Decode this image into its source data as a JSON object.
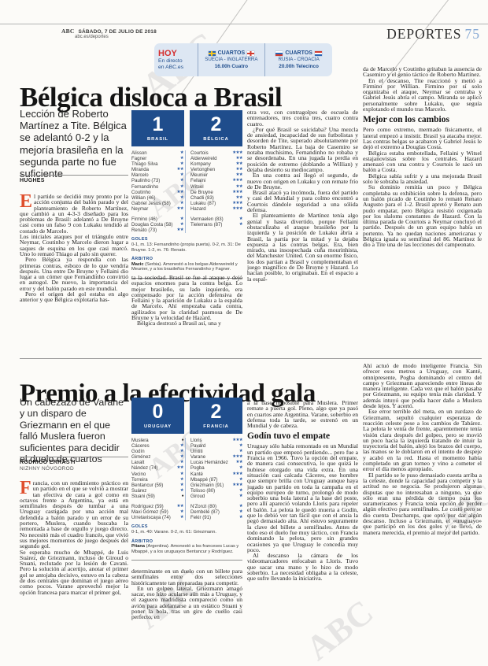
{
  "page": {
    "brand": "ABC",
    "date_line": "SÁBADO, 7 DE JULIO DE 2018",
    "site_line": "abc.es/deportes",
    "section": "DEPORTES",
    "page_number": "75",
    "watermark": "ABC",
    "accent_blue": "#1f4d8c",
    "dropcap_red": "#df4f2d"
  },
  "today_box": {
    "title": "HOY",
    "line1": "En directo",
    "line2": "en ABC.es",
    "matches": [
      {
        "stage": "CUARTOS",
        "teams": "SUECIA - INGLATERRA",
        "time": "16.00h Cuatro"
      },
      {
        "stage": "CUARTOS",
        "teams": "RUSIA - CROACIA",
        "time": "20.00h Telecinco"
      }
    ]
  },
  "article1": {
    "headline": "Bélgica disloca a Brasil",
    "standfirst": "Lección de Roberto Martínez a Tite. Bélgica se adelantó 0-2 y la mejoría brasileña en la segunda parte no fue suficiente",
    "byline": "HUGHES",
    "dropcap": "E",
    "lead_first": "l partido se decidió muy pronto por la acción conjunta del balón parado y del planteamiento de Roberto Martínez, que cambió a un 4-3-3 diseñado para los problemas de Brasil: adelantó a De Bruyne casi como un falso 9 con Lukaku tendido al costado de Marcelo.",
    "col1_rest": [
      "Los iniciales ataques por el triángulo entre Neymar, Coutinho y Marcelo dieron lugar a saques de esquina en los que casi marcó. Uno lo remató Thiago al palo sin querer.",
      "Pero Bélgica ya respondía con las primeras contras, esbozo de lo que vendría después. Una entre De Bruyne y Fellaini dio lugar a un córner que Fernandinho convirtió en autogol. De nuevo, la importancia del error y del balón parado en este mundial.",
      "Pero el origen del gol estaba en algo anterior y que Bélgica explotaría has-"
    ],
    "col2_paragraphs": [
      "ta la sociedad. Brasil se fue al ataque y dejó espacios enormes para la contra belga. Lo mejor brasileño, su lado izquierdo, era compensado por la acción defensiva de Fellaini y la aparición de Lukaku a la espalda de Marcelo. Ahí empezaba cada contra, agilizados por la claridad pasmosa de De Bruyne y la velocidad de Hazard.",
      "Bélgica destrozó a Brasil así, una y"
    ],
    "col3_paragraphs": [
      "otra vez, con contragolpes de escuela de entrenadores, tres contra tres, cuatro contra cuatro.",
      "¿Por qué Brasil se suicidaba? Una mezcla de ansiedad, incapacidad de sus futbolistas y desorden de Tite, superado absolutamente por Roberto Martínez. La baja de Casemiro se notaba muchísimo, Fernandinho no robaba y se desordenaba. En una jugada la perdía en posición de extremo (doblando a Willian) y dejaba desierto su mediocampo.",
      "En una contra así llegó el segundo, de nuevo con origen en Lukaku y con remate frío de De Bruyne.",
      "Brasil atacó ya incómoda, fuera del partido y casi del Mundial y para colmo encontró a Courtois dándole seguridad a una sólida defensa.",
      "El planteamiento de Martínez tenía algo genial y hasta divertido, porque Fellaini obstaculizaba el ataque brasileño por la izquierda y la posición de Lukaku abría a Brasil, la partía por la mitad y la dejaba expuesta a las contras belgas. Era, bien mirado, una insospechada cuña mourinhista, del Manchester United. Con su enorme físico, los dos partían a Brasil y complementaban el juego magnífico de De Bruyne y Hazard. Lo hacían posible, lo originaban. En el espacio a la espal-"
    ],
    "col4_before": [
      "da de Marcelo y Coutinho gritaban la ausencia de Casemiro y el genio táctico de Roberto Martínez.",
      "En el descanso, Tite reaccionó y metió a Firmino por Willian. Firmino por sí solo organizaba el ataque, Neymar se centraba y Gabriel Jesús abría el campo. Miranda se aplicó personalmente sobre Lukaku, que seguía explotando el mundo tras Marcelo."
    ],
    "subhead": "Mejor con los cambios",
    "col4_after": [
      "Pero como extremo, mermado físicamente, el lateral empezó a insistir. Brasil ya atacaba mejor. Las contras belgas se acabaron y Gabriel Jesús le dejó el extremo a Douglas Costa.",
      "Bélgica estaba embotellada, Fellaini y Witsel estajanovistas sobre los centrales. Hazard amenazó con una contra y Courtois le sacó un balón a Costa.",
      "Bélgica sabía sufrir y a una mejorada Brasil solo le sobraba la ansiedad.",
      "Su dominio remitía un poco y Bélgica completaba su exhibición sobre la defensa, pero un balón picado de Coutinho lo remató Renato Augusto para el 1-2. Brasil apretó y Renato aun pudo empatar, pero Bélgica resistió oxigenada por los slaloms constantes de Hazard. Con la última parada de Courtois a Neymar concluyó el partido. Después de un gran equipo había un portento. Ya no quedan naciones americanas y Bélgica iguala su semifinal del 86. Martínez le dio a Tite una de las lecciones del campeonato."
    ],
    "match": {
      "home_score": "1",
      "home_team": "BRASIL",
      "away_score": "2",
      "away_team": "BÉLGICA",
      "home_players": [
        {
          "name": "Alisson",
          "rating": "★"
        },
        {
          "name": "Fagner",
          "rating": "★"
        },
        {
          "name": "Thiago Silva",
          "rating": "★"
        },
        {
          "name": "Miranda",
          "rating": "★★"
        },
        {
          "name": "Marcelo",
          "rating": "★"
        },
        {
          "name": "Paulinho (73)",
          "rating": "★"
        },
        {
          "name": "Fernandinho",
          "rating": "★"
        },
        {
          "name": "Coutinho",
          "rating": "★★"
        },
        {
          "name": "Willian (46)",
          "rating": "★"
        },
        {
          "name": "Gabriel Jesus (58)",
          "rating": "★"
        },
        {
          "name": "Neymar",
          "rating": "★★"
        }
      ],
      "home_subs": [
        {
          "name": "Firmino (46)",
          "rating": "★"
        },
        {
          "name": "Douglas Costa (58)",
          "rating": "★"
        },
        {
          "name": "Renato (73)",
          "rating": "★★"
        }
      ],
      "away_players": [
        {
          "name": "Courtois",
          "rating": "★★★"
        },
        {
          "name": "Alderweireld",
          "rating": "★★"
        },
        {
          "name": "Kompany",
          "rating": "★★"
        },
        {
          "name": "Vertonghen",
          "rating": "★★"
        },
        {
          "name": "Meunier",
          "rating": "★★"
        },
        {
          "name": "Fellaini",
          "rating": "★★★"
        },
        {
          "name": "Witsel",
          "rating": "★★"
        },
        {
          "name": "De Bruyne",
          "rating": "★★★"
        },
        {
          "name": "Chadli (83)",
          "rating": "★★"
        },
        {
          "name": "Lukaku (87)",
          "rating": "★★★"
        },
        {
          "name": "Hazard",
          "rating": "★★★"
        }
      ],
      "away_subs": [
        {
          "name": "Vermaelen (83)",
          "rating": "★"
        },
        {
          "name": "Tielemans (87)",
          "rating": "★"
        }
      ],
      "goles_label": "GOLES",
      "goles": "0-1, m. 13: Fernandinho (propia puerta). 0-2, m. 31: De Bruyne. 1-2, m. 76: Renato.",
      "arbitro_label": "ÁRBITRO",
      "arbitro_name": "Mazic",
      "arbitro_rest": " (Serbia). Amonestó a los belgas Alderweireld y Meunier, y a los brasileños Fernandinho y Fagner."
    }
  },
  "article2": {
    "headline": "Premio a la efectividad gala",
    "standfirst": "Un cabezazo de Varane y un disparo de Griezmann en el que falló Muslera fueron suficientes para decidir el duelo de cuartos",
    "byline": "RODRIGO ERRASTI",
    "byline_location": "NIZHNY NÓVGOROD",
    "dropcap": "F",
    "lead_first": "rancia, con un rendimiento práctico en un partido en el que se volvió a mostrar tan efectiva de cara a gol como en octavos frente a Argentina, ya está en semifinales después de tumbar a una Uruguay castigada por una acción mal defendida a balón parado y un error de su portero, Muslera, cuando buscaba la remontada a base de orgullo y juego directo. No necesitó más el cuadro francés, que vivió sus mejores momentos de juego después del segundo gol.",
    "col1_rest": [
      "Se esperaba mucho de Mbappé, de Luis Suárez, de Griezmann, incluso de Giroud o Stuani, reclutado por la lesión de Cavani. Pero la solución al acertijo, anotar el primer gol se antojaba decisivo, estuvo en la cabeza de dos centrales que dominan el juego aéreo como pocos. Varane aprovechó mejor la opción francesa para marcar el primer gol,"
    ],
    "col2_paragraphs": [
      "determinante en un duelo con un billete para semifinales entre dos selecciones históricamente tan preparadas para competir.",
      "En un golpeo lateral, Griezmann amagó sacar, eso hizo acularse aún más a Uruguay, y el zaguero madridista compareció como un avión para adelantarse a un estático Stuani y poner la bola, tras un giro de cuello casi perfecto, en"
    ],
    "col3_before": [
      "a la base imposible para Muslera. Primer remate a puerta gol. Pleno, algo que ya pasó en cuartos ante Argentina. Varane, soberbio en defensa toda la tarde, se estrenó en un Mundial y de cabeza."
    ],
    "subhead": "Godín tuvo el empate",
    "col3_after": [
      "Uruguay sólo había remontado en un Mundial un partido que empezó perdiendo... pero fue a Francia en 1966. Tuvo la opción del empate, de manera casi consecutiva, lo que quizá le hubiese otorgado una vida extra. En una situación casi calcada Cáceres, ese hombre que siempre brilla con Uruguay aunque haya jugado un partido en toda la campaña en el equipo europeo de turno, prolongó de modo soberbio una bola lateral a la base del poste, pero allí apareció volando Lloris para repeler el balón. La pelota le quedó muerta a Godín, que lo debió ver tan fácil que con el ansia la pegó demasiado alta. Ahí estuvo seguramente la clave del billete a semifinales. Antes de todo eso el duelo fue muy táctico, con Francia dominando la pelota, pero sin grandes ocasiones ya que Uruguay le concedía muy poco.",
      "Al descanso la cámara de los videomarcadores enfocaban a Lloris. Tuvo que sacar una mano y lo hizo de modo soberbio. La necesidad obligaba a la celeste, que sufre llevando la iniciativa."
    ],
    "col4_paragraphs": [
      "Ahí actuó de modo inteligente Francia. Sin ofrecer esos metros a Uruguay, con Kanté, omnipresente, Pogba dominando el centro del campo y Griezmann apareciendo entre líneas de manera inteligente. Cada vez que el balón pasaba por Griezmann, su equipo tenía más claridad. Y además intuyó que podía hacer daño a Muslera desde lejos. Y acertó.",
      "Ese error terrible del meta, en un zurdazo de Griezmann, sepultó cualquier esperanza de reacción celeste pese a los cambios de Tabárez. La pelota le venía de frente, aparentemente tenía visión clara después del golpeo, pero se movió un poco hacia la izquierda tratando de intuir la trayectoria del balón, alejó los brazos del cuerpo, las manos se le doblaron en el intento de despeje y acabó en la red. Hasta el momento había completado un gran torneo y vino a cometer el error el día menos apropiado.",
      "El partido se le puso demasiado cuesta arriba a la celeste, donde la capacidad para competir y la actitud no se negocia. Se produjeron algunas disputas que no interesaban a ninguno, ya que sólo eran una pérdida de tiempo para los suramericanos y Francia tenía opción de perder algún efectivo para semifinales. Le costó pero se dio cuenta Deschamps, que optó por dar algún descanso. Incluso a Griezmann, el «uruguayo» que participó en los dos goles y se llevó, de manera merecida, el premio al mejor del partido."
    ],
    "match": {
      "home_score": "0",
      "home_team": "URUGUAY",
      "away_score": "2",
      "away_team": "FRANCIA",
      "home_players": [
        {
          "name": "Muslera",
          "rating": "●"
        },
        {
          "name": "Cáceres",
          "rating": "★"
        },
        {
          "name": "Godín",
          "rating": "★"
        },
        {
          "name": "Giménez",
          "rating": "★"
        },
        {
          "name": "Laxalt",
          "rating": "★"
        },
        {
          "name": "Nández (74)",
          "rating": "★★"
        },
        {
          "name": "Vecino",
          "rating": "★"
        },
        {
          "name": "Torreira",
          "rating": "★"
        },
        {
          "name": "Bentancur (59)",
          "rating": "★"
        },
        {
          "name": "Suárez",
          "rating": "★"
        },
        {
          "name": "Stuani (59)",
          "rating": "●"
        }
      ],
      "home_subs": [
        {
          "name": "Rodríguez (59)",
          "rating": "★★"
        },
        {
          "name": "Maxi Gómez (59)",
          "rating": "★"
        },
        {
          "name": "Urretaviscaya (74)",
          "rating": "★"
        }
      ],
      "away_players": [
        {
          "name": "Lloris",
          "rating": "★★★"
        },
        {
          "name": "Pavard",
          "rating": "★"
        },
        {
          "name": "Umtiti",
          "rating": "★"
        },
        {
          "name": "Varane",
          "rating": "★★★"
        },
        {
          "name": "Lucas Hernández",
          "rating": "★★"
        },
        {
          "name": "Pogba",
          "rating": "★"
        },
        {
          "name": "Kanté",
          "rating": "★★★"
        },
        {
          "name": "Mbappé (87)",
          "rating": "★"
        },
        {
          "name": "Griezmann (91)",
          "rating": "★★★"
        },
        {
          "name": "Tolisso (80)",
          "rating": "★"
        },
        {
          "name": "Giroud",
          "rating": "★"
        }
      ],
      "away_subs": [
        {
          "name": "N'Zonzi (80)",
          "rating": "★"
        },
        {
          "name": "Dembélé (87)",
          "rating": "★"
        },
        {
          "name": "Fekir (91)",
          "rating": "★"
        }
      ],
      "goles_label": "GOLES",
      "goles": "0-1, m. 40: Varane. 0-2, m. 61: Griezmann.",
      "arbitro_label": "ÁRBITRO",
      "arbitro_name": "Pitana",
      "arbitro_rest": " (Argentina). Amonestó a los franceses Lucas y Mbappé, y a los uruguayos Bentancur y Rodríguez."
    }
  }
}
